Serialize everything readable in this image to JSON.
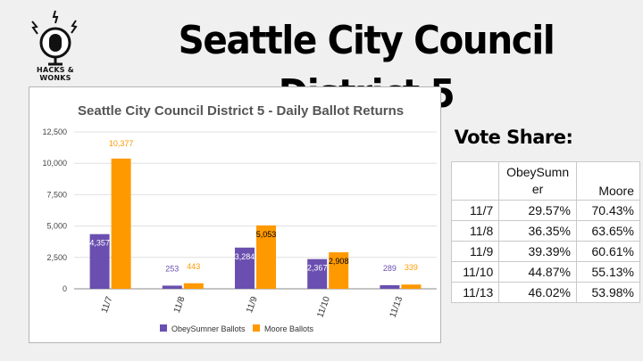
{
  "logo": {
    "text": "HACKS & WONKS",
    "icon": "microphone-icon"
  },
  "headline": "Seattle City Council District 5",
  "vote_share": {
    "title": "Vote Share:",
    "columns": [
      "",
      "ObeySumner",
      "Moore"
    ],
    "rows": [
      {
        "date": "11/7",
        "obeysumner": "29.57%",
        "moore": "70.43%"
      },
      {
        "date": "11/8",
        "obeysumner": "36.35%",
        "moore": "63.65%"
      },
      {
        "date": "11/9",
        "obeysumner": "39.39%",
        "moore": "60.61%"
      },
      {
        "date": "11/10",
        "obeysumner": "44.87%",
        "moore": "55.13%"
      },
      {
        "date": "11/13",
        "obeysumner": "46.02%",
        "moore": "53.98%"
      }
    ]
  },
  "chart_data": {
    "type": "bar",
    "title": "Seattle City Council District 5 - Daily Ballot Returns",
    "categories": [
      "11/7",
      "11/8",
      "11/9",
      "11/10",
      "11/13"
    ],
    "series": [
      {
        "name": "ObeySumner Ballots",
        "color": "#6a4fb0",
        "values": [
          4357,
          253,
          3284,
          2367,
          289
        ],
        "labels": [
          "4,357",
          "253",
          "3,284",
          "2,367",
          "289"
        ]
      },
      {
        "name": "Moore Ballots",
        "color": "#ff9900",
        "values": [
          10377,
          443,
          5053,
          2908,
          339
        ],
        "labels": [
          "10,377",
          "443",
          "5,053",
          "2,908",
          "339"
        ]
      }
    ],
    "ylim": [
      0,
      12500
    ],
    "yticks": [
      "0",
      "2,500",
      "5,000",
      "7,500",
      "10,000",
      "12,500"
    ],
    "ytick_values": [
      0,
      2500,
      5000,
      7500,
      10000,
      12500
    ],
    "grid": true,
    "legend": "bottom"
  }
}
